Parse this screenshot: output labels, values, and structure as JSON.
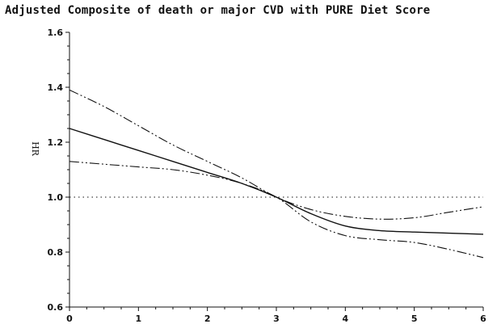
{
  "chart_data": {
    "type": "line",
    "title": "Adjusted Composite of death or major CVD with PURE Diet Score",
    "xlabel": "",
    "ylabel": "HR",
    "xlim": [
      0,
      6
    ],
    "ylim": [
      0.6,
      1.6
    ],
    "xticks": [
      0,
      1,
      2,
      3,
      4,
      5,
      6
    ],
    "yticks": [
      0.6,
      0.8,
      1.0,
      1.2,
      1.4,
      1.6
    ],
    "ytick_labels": [
      "0.6",
      "0.8",
      "1.0",
      "1.2",
      "1.4",
      "1.6"
    ],
    "grid": false,
    "reference_line": {
      "y": 1.0,
      "style": "dotted"
    },
    "series": [
      {
        "role": "estimate",
        "style": "solid",
        "x": [
          0,
          0.5,
          1,
          1.5,
          2,
          2.5,
          3,
          3.5,
          4,
          4.5,
          5,
          5.5,
          6
        ],
        "y": [
          1.25,
          1.21,
          1.17,
          1.13,
          1.09,
          1.05,
          1.0,
          0.94,
          0.895,
          0.878,
          0.873,
          0.869,
          0.865
        ]
      },
      {
        "role": "upper-bound",
        "style": "dash-dot-dot",
        "x": [
          0,
          0.5,
          1,
          1.5,
          2,
          2.5,
          3,
          3.5,
          4,
          4.5,
          5,
          5.5,
          6
        ],
        "y": [
          1.39,
          1.33,
          1.26,
          1.19,
          1.13,
          1.07,
          1.0,
          0.955,
          0.93,
          0.92,
          0.925,
          0.945,
          0.965
        ]
      },
      {
        "role": "lower-bound",
        "style": "dash-dot-dot",
        "x": [
          0,
          0.5,
          1,
          1.5,
          2,
          2.5,
          3,
          3.5,
          4,
          4.5,
          5,
          5.5,
          6
        ],
        "y": [
          1.13,
          1.12,
          1.11,
          1.1,
          1.08,
          1.05,
          1.0,
          0.91,
          0.86,
          0.845,
          0.835,
          0.81,
          0.78
        ]
      }
    ]
  }
}
